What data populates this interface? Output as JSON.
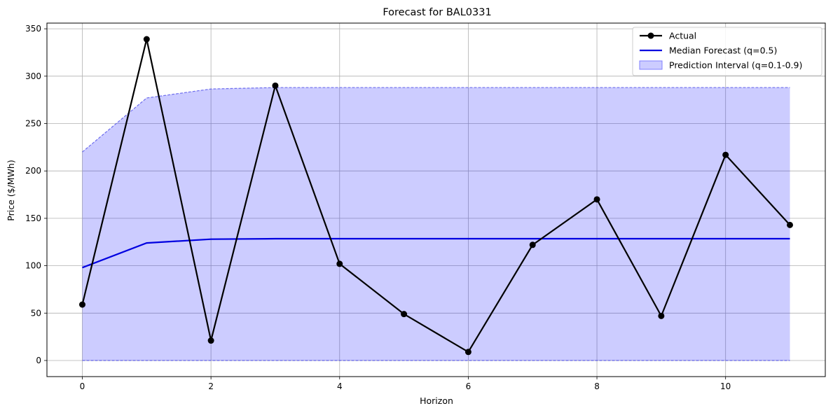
{
  "chart_data": {
    "type": "line",
    "title": "Forecast for BAL0331",
    "xlabel": "Horizon",
    "ylabel": "Price ($/MWh)",
    "xlim": [
      -0.55,
      11.55
    ],
    "ylim": [
      -17,
      356
    ],
    "x_ticks": [
      0,
      2,
      4,
      6,
      8,
      10
    ],
    "y_ticks": [
      0,
      50,
      100,
      150,
      200,
      250,
      300,
      350
    ],
    "grid": true,
    "legend_position": "upper right",
    "x": [
      0,
      1,
      2,
      3,
      4,
      5,
      6,
      7,
      8,
      9,
      10,
      11
    ],
    "series": [
      {
        "name": "Actual",
        "kind": "line-markers",
        "color": "#000000",
        "values": [
          59,
          339,
          21,
          290,
          102,
          49,
          9,
          122,
          170,
          47,
          217,
          143
        ]
      },
      {
        "name": "Median Forecast (q=0.5)",
        "kind": "line",
        "color": "#0000e0",
        "values": [
          98,
          124,
          128,
          128.5,
          128.5,
          128.5,
          128.5,
          128.5,
          128.5,
          128.5,
          128.5,
          128.5
        ]
      },
      {
        "name": "Prediction Interval (q=0.1-0.9)",
        "kind": "band",
        "color": "#8080ff",
        "lower": [
          0,
          0,
          0,
          0,
          0,
          0,
          0,
          0,
          0,
          0,
          0,
          0
        ],
        "upper": [
          220,
          277,
          286.5,
          288,
          288,
          288,
          288,
          288,
          288,
          288,
          288,
          288
        ]
      }
    ]
  }
}
